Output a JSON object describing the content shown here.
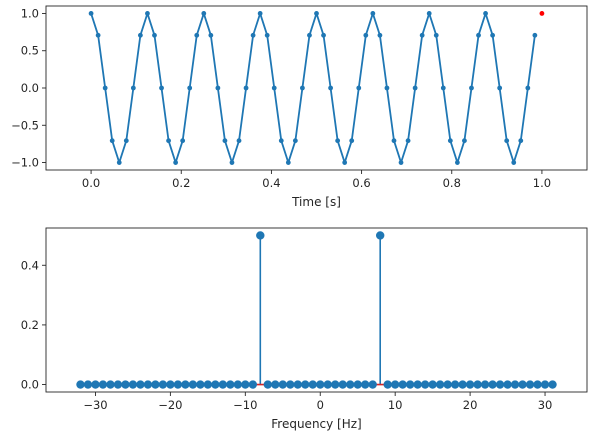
{
  "chart_data": [
    {
      "type": "line",
      "xlabel": "Time [s]",
      "ylabel": "",
      "xlim": [
        -0.1,
        1.1
      ],
      "ylim": [
        -1.1,
        1.1
      ],
      "xticks": [
        "0.0",
        "0.2",
        "0.4",
        "0.6",
        "0.8",
        "1.0"
      ],
      "yticks": [
        "1.0",
        "0.5",
        "0.0",
        "−0.5",
        "−1.0"
      ],
      "grid": false,
      "colors": {
        "line": "#1f77b4",
        "highlight": "#ff0000"
      },
      "series": [
        {
          "t_start": 0.0,
          "t_step": 0.015625,
          "values": [
            1.0,
            0.7071,
            0.0,
            -0.7071,
            -1.0,
            -0.7071,
            0.0,
            0.7071,
            1.0,
            0.7071,
            0.0,
            -0.7071,
            -1.0,
            -0.7071,
            0.0,
            0.7071,
            1.0,
            0.7071,
            0.0,
            -0.7071,
            -1.0,
            -0.7071,
            0.0,
            0.7071,
            1.0,
            0.7071,
            0.0,
            -0.7071,
            -1.0,
            -0.7071,
            0.0,
            0.7071,
            1.0,
            0.7071,
            0.0,
            -0.7071,
            -1.0,
            -0.7071,
            0.0,
            0.7071,
            1.0,
            0.7071,
            0.0,
            -0.7071,
            -1.0,
            -0.7071,
            0.0,
            0.7071,
            1.0,
            0.7071,
            0.0,
            -0.7071,
            -1.0,
            -0.7071,
            0.0,
            0.7071,
            1.0,
            0.7071,
            0.0,
            -0.7071,
            -1.0,
            -0.7071,
            0.0,
            0.7071
          ]
        }
      ],
      "highlight_point": {
        "x": 1.0,
        "y": 1.0
      }
    },
    {
      "type": "stem",
      "xlabel": "Frequency [Hz]",
      "ylabel": "",
      "xlim": [
        -36.6,
        35.6
      ],
      "ylim": [
        -0.025,
        0.525
      ],
      "xticks": [
        "−30",
        "−20",
        "−10",
        "0",
        "10",
        "20",
        "30"
      ],
      "yticks": [
        "0.4",
        "0.2",
        "0.0"
      ],
      "grid": false,
      "colors": {
        "stem": "#1f77b4",
        "baseline": "#d62728"
      },
      "frequencies_range": [
        -32,
        31
      ],
      "nonzero": [
        {
          "frequency": -8,
          "magnitude": 0.5
        },
        {
          "frequency": 8,
          "magnitude": 0.5
        }
      ],
      "default_magnitude": 0.0
    }
  ]
}
